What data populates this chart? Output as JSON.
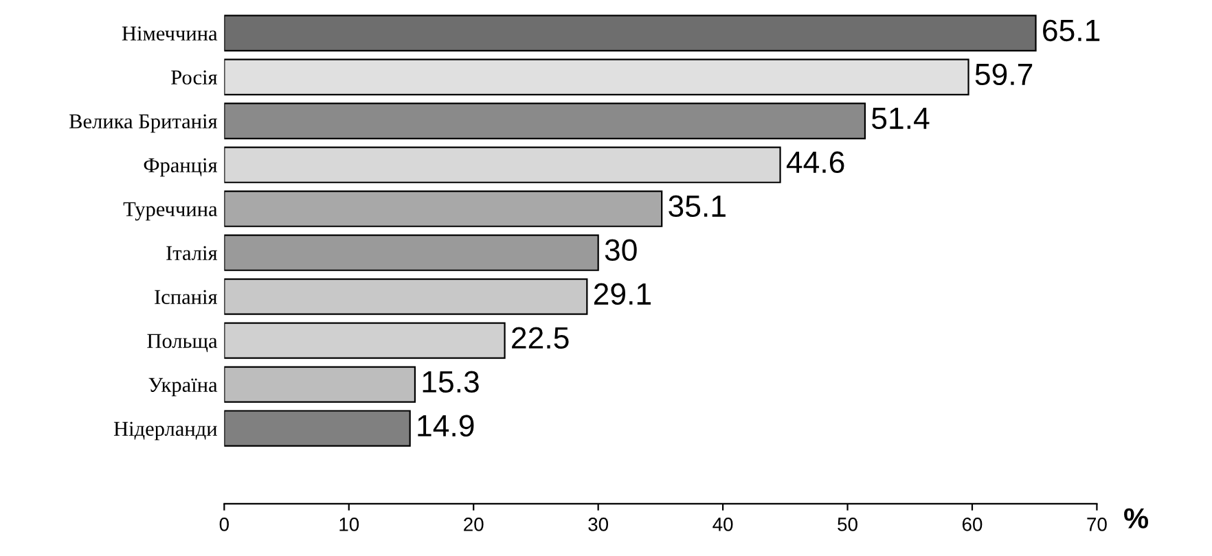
{
  "chart_data": {
    "type": "bar",
    "orientation": "horizontal",
    "xlabel": "%",
    "categories": [
      "Німеччина",
      "Росія",
      "Велика Британія",
      "Франція",
      "Туреччина",
      "Італія",
      "Іспанія",
      "Польща",
      "Україна",
      "Нідерланди"
    ],
    "values": [
      65.1,
      59.7,
      51.4,
      44.6,
      35.1,
      30,
      29.1,
      22.5,
      15.3,
      14.9
    ],
    "colors": [
      "#6e6e6e",
      "#e0e0e0",
      "#8a8a8a",
      "#d8d8d8",
      "#a8a8a8",
      "#9a9a9a",
      "#c8c8c8",
      "#d0d0d0",
      "#bdbdbd",
      "#808080"
    ],
    "xlim": [
      0,
      70
    ],
    "xticks": [
      0,
      10,
      20,
      30,
      40,
      50,
      60,
      70
    ],
    "data_labels": true,
    "grid": false,
    "legend": false
  }
}
